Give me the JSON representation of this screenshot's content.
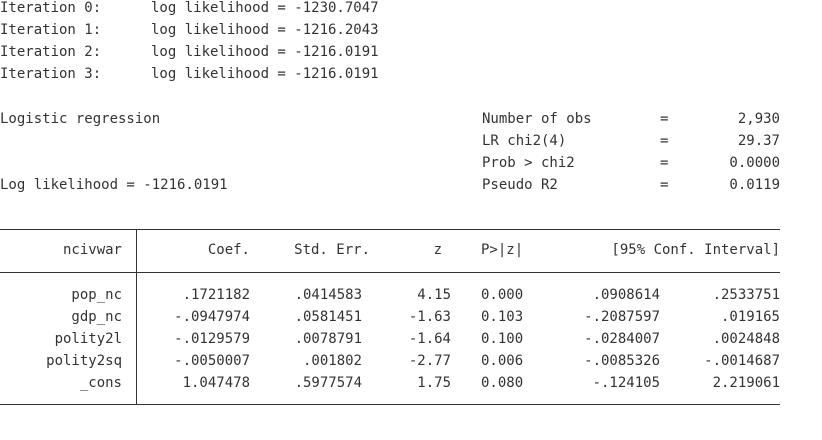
{
  "iterations": [
    {
      "label": "Iteration 0:",
      "text": "log likelihood = -1230.7047"
    },
    {
      "label": "Iteration 1:",
      "text": "log likelihood = -1216.2043"
    },
    {
      "label": "Iteration 2:",
      "text": "log likelihood = -1216.0191"
    },
    {
      "label": "Iteration 3:",
      "text": "log likelihood = -1216.0191"
    }
  ],
  "model_title": "Logistic regression",
  "log_likelihood": "Log likelihood = -1216.0191",
  "stats": [
    {
      "label": "Number of obs",
      "eq": "=",
      "value": "2,930"
    },
    {
      "label": "LR chi2(4)",
      "eq": "=",
      "value": "29.37"
    },
    {
      "label": "Prob > chi2",
      "eq": "=",
      "value": "0.0000"
    },
    {
      "label": "Pseudo R2",
      "eq": "=",
      "value": "0.0119"
    }
  ],
  "table": {
    "depvar": "ncivwar",
    "headers": [
      "Coef.",
      "Std. Err.",
      "z",
      "P>|z|",
      "[95% Conf. Interval]"
    ],
    "rows": [
      {
        "var": "pop_nc",
        "coef": ".1721182",
        "se": ".0414583",
        "z": "4.15",
        "p": "0.000",
        "lo": ".0908614",
        "hi": ".2533751"
      },
      {
        "var": "gdp_nc",
        "coef": "-.0947974",
        "se": ".0581451",
        "z": "-1.63",
        "p": "0.103",
        "lo": "-.2087597",
        "hi": ".019165"
      },
      {
        "var": "polity2l",
        "coef": "-.0129579",
        "se": ".0078791",
        "z": "-1.64",
        "p": "0.100",
        "lo": "-.0284007",
        "hi": ".0024848"
      },
      {
        "var": "polity2sq",
        "coef": "-.0050007",
        "se": ".001802",
        "z": "-2.77",
        "p": "0.006",
        "lo": "-.0085326",
        "hi": "-.0014687"
      },
      {
        "var": "_cons",
        "coef": "1.047478",
        "se": ".5977574",
        "z": "1.75",
        "p": "0.080",
        "lo": "-.124105",
        "hi": "2.219061"
      }
    ]
  }
}
